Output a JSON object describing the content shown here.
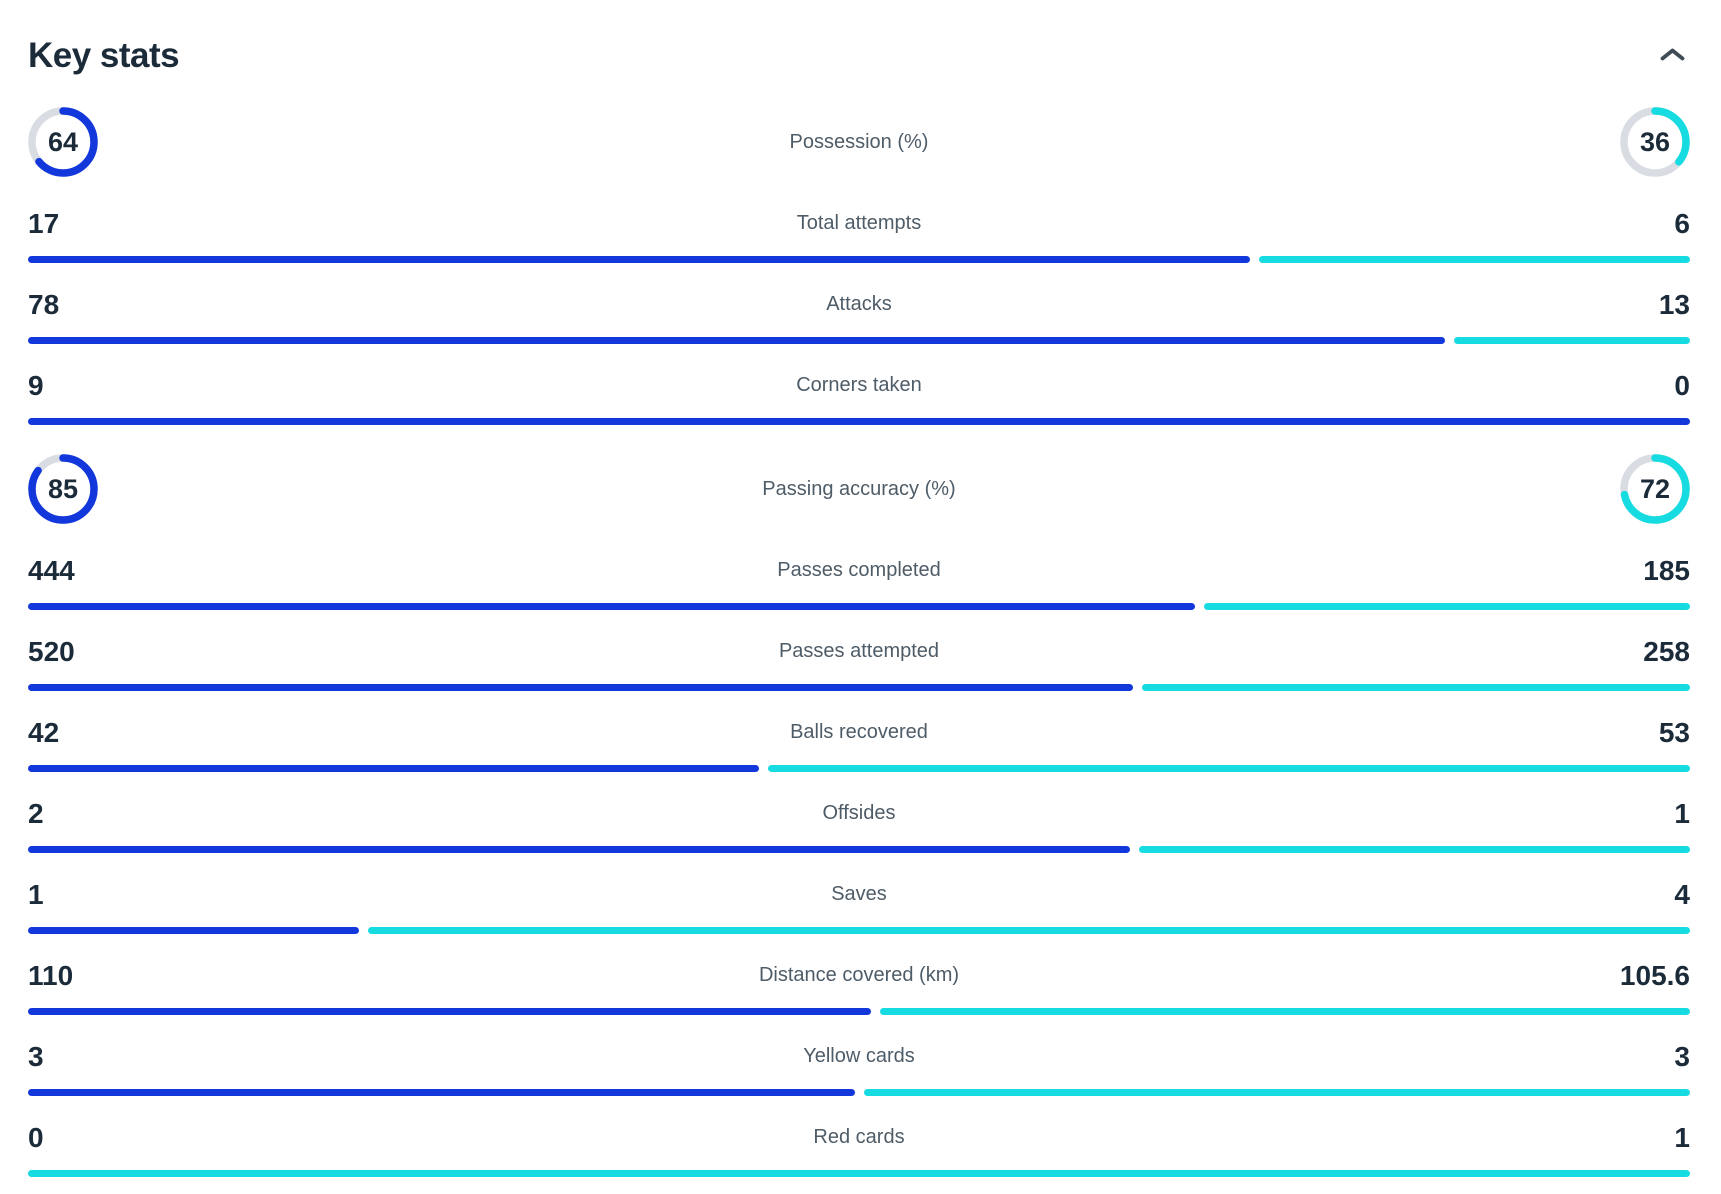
{
  "header": {
    "title": "Key stats",
    "collapse_icon": "chevron-up"
  },
  "colors": {
    "home": "#1238dc",
    "away": "#16dce2",
    "track": "#d9dde3",
    "text_dark": "#1c2b3a",
    "label": "#4e5c68",
    "icon": "#3f4b55"
  },
  "chart_data": {
    "type": "bar",
    "title": "Key stats",
    "orientation": "horizontal-comparison",
    "legend_position": "none",
    "series_names": [
      "home",
      "away"
    ],
    "rows": [
      {
        "label": "Possession (%)",
        "display": "donut",
        "home": 64,
        "away": 36
      },
      {
        "label": "Total attempts",
        "display": "bar",
        "home": 17,
        "away": 6
      },
      {
        "label": "Attacks",
        "display": "bar",
        "home": 78,
        "away": 13
      },
      {
        "label": "Corners taken",
        "display": "bar",
        "home": 9,
        "away": 0
      },
      {
        "label": "Passing accuracy (%)",
        "display": "donut",
        "home": 85,
        "away": 72
      },
      {
        "label": "Passes completed",
        "display": "bar",
        "home": 444,
        "away": 185
      },
      {
        "label": "Passes attempted",
        "display": "bar",
        "home": 520,
        "away": 258
      },
      {
        "label": "Balls recovered",
        "display": "bar",
        "home": 42,
        "away": 53
      },
      {
        "label": "Offsides",
        "display": "bar",
        "home": 2,
        "away": 1
      },
      {
        "label": "Saves",
        "display": "bar",
        "home": 1,
        "away": 4
      },
      {
        "label": "Distance covered (km)",
        "display": "bar",
        "home": 110,
        "away": 105.6
      },
      {
        "label": "Yellow cards",
        "display": "bar",
        "home": 3,
        "away": 3
      },
      {
        "label": "Red cards",
        "display": "bar",
        "home": 0,
        "away": 1
      }
    ]
  }
}
